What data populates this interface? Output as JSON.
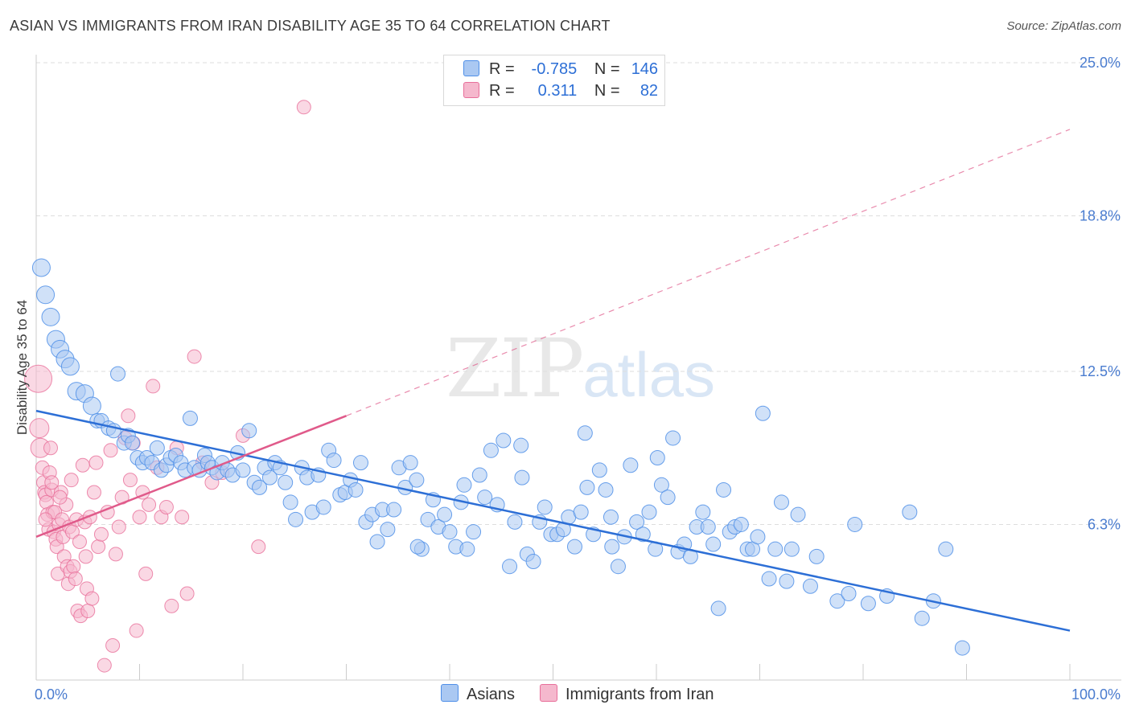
{
  "title": "ASIAN VS IMMIGRANTS FROM IRAN DISABILITY AGE 35 TO 64 CORRELATION CHART",
  "source": "Source: ZipAtlas.com",
  "watermark": {
    "zip": "ZIP",
    "atlas": "atlas"
  },
  "legend": {
    "rows": [
      {
        "r_label": "R =",
        "r_value": "-0.785",
        "n_label": "N =",
        "n_value": "146"
      },
      {
        "r_label": "R =",
        "r_value": "0.311",
        "n_label": "N =",
        "n_value": "82"
      }
    ]
  },
  "bottom_legend": [
    "Asians",
    "Immigrants from Iran"
  ],
  "colors": {
    "blue": "#4f8fe8",
    "blue_fill": "#aac8f2",
    "blue_line": "#2d6fd6",
    "pink": "#e86f9a",
    "pink_fill": "#f5b8cd",
    "pink_line": "#e05a8a",
    "grid": "#dedede",
    "tick_text": "#4a7ccf"
  },
  "chart_data": {
    "type": "scatter",
    "title": "ASIAN VS IMMIGRANTS FROM IRAN DISABILITY AGE 35 TO 64 CORRELATION CHART",
    "ylabel": "Disability Age 35 to 64",
    "xlabel": "",
    "xlim": [
      0,
      100
    ],
    "ylim": [
      0,
      25.0
    ],
    "x_tick_labels": [
      "0.0%",
      "100.0%"
    ],
    "y_ticks": [
      6.3,
      12.5,
      18.8,
      25.0
    ],
    "y_tick_labels": [
      "6.3%",
      "12.5%",
      "18.8%",
      "25.0%"
    ],
    "grid": true,
    "legend_position": "top-center",
    "series": [
      {
        "name": "Asians",
        "color": "#4f8fe8",
        "trend": {
          "x": [
            0,
            100
          ],
          "y": [
            10.9,
            2.0
          ],
          "style": "solid"
        },
        "points": [
          [
            0.5,
            16.7
          ],
          [
            0.9,
            15.6
          ],
          [
            1.4,
            14.7
          ],
          [
            1.9,
            13.8
          ],
          [
            2.3,
            13.4
          ],
          [
            2.8,
            13.0
          ],
          [
            3.3,
            12.7
          ],
          [
            3.9,
            11.7
          ],
          [
            4.7,
            11.6
          ],
          [
            5.4,
            11.1
          ],
          [
            5.9,
            10.5
          ],
          [
            6.3,
            10.5
          ],
          [
            7.0,
            10.2
          ],
          [
            7.5,
            10.1
          ],
          [
            7.9,
            12.4
          ],
          [
            8.5,
            9.6
          ],
          [
            8.9,
            9.9
          ],
          [
            9.3,
            9.6
          ],
          [
            9.8,
            9.0
          ],
          [
            10.3,
            8.8
          ],
          [
            10.7,
            9.0
          ],
          [
            11.2,
            8.8
          ],
          [
            11.7,
            9.4
          ],
          [
            12.1,
            8.5
          ],
          [
            12.6,
            8.7
          ],
          [
            13.0,
            9.0
          ],
          [
            13.5,
            9.1
          ],
          [
            14.0,
            8.8
          ],
          [
            14.4,
            8.5
          ],
          [
            14.9,
            10.6
          ],
          [
            15.3,
            8.6
          ],
          [
            15.8,
            8.5
          ],
          [
            16.3,
            9.1
          ],
          [
            16.6,
            8.8
          ],
          [
            17.0,
            8.6
          ],
          [
            17.5,
            8.4
          ],
          [
            18.0,
            8.8
          ],
          [
            18.5,
            8.5
          ],
          [
            19.0,
            8.3
          ],
          [
            19.5,
            9.2
          ],
          [
            20.0,
            8.5
          ],
          [
            20.6,
            10.1
          ],
          [
            21.1,
            8.0
          ],
          [
            21.6,
            7.8
          ],
          [
            22.1,
            8.6
          ],
          [
            22.6,
            8.2
          ],
          [
            23.1,
            8.8
          ],
          [
            23.6,
            8.6
          ],
          [
            24.1,
            8.0
          ],
          [
            24.6,
            7.2
          ],
          [
            25.1,
            6.5
          ],
          [
            25.7,
            8.6
          ],
          [
            26.2,
            8.2
          ],
          [
            26.7,
            6.8
          ],
          [
            27.3,
            8.3
          ],
          [
            27.8,
            7.0
          ],
          [
            28.3,
            9.3
          ],
          [
            28.8,
            8.9
          ],
          [
            29.4,
            7.5
          ],
          [
            29.9,
            7.6
          ],
          [
            30.4,
            8.1
          ],
          [
            30.9,
            7.7
          ],
          [
            31.4,
            8.8
          ],
          [
            31.9,
            6.4
          ],
          [
            32.5,
            6.7
          ],
          [
            33.0,
            5.6
          ],
          [
            33.5,
            6.9
          ],
          [
            34.0,
            6.1
          ],
          [
            34.6,
            6.9
          ],
          [
            35.1,
            8.6
          ],
          [
            35.7,
            7.8
          ],
          [
            36.2,
            8.8
          ],
          [
            36.8,
            8.1
          ],
          [
            37.3,
            5.3
          ],
          [
            37.9,
            6.5
          ],
          [
            38.4,
            7.3
          ],
          [
            38.9,
            6.2
          ],
          [
            39.5,
            6.7
          ],
          [
            40.0,
            6.0
          ],
          [
            40.6,
            5.4
          ],
          [
            41.1,
            7.2
          ],
          [
            41.7,
            5.3
          ],
          [
            42.3,
            6.0
          ],
          [
            42.9,
            8.3
          ],
          [
            43.4,
            7.4
          ],
          [
            44.0,
            9.3
          ],
          [
            44.6,
            7.1
          ],
          [
            45.2,
            9.7
          ],
          [
            45.8,
            4.6
          ],
          [
            46.3,
            6.4
          ],
          [
            46.9,
            9.5
          ],
          [
            47.5,
            5.1
          ],
          [
            48.1,
            4.8
          ],
          [
            48.7,
            6.4
          ],
          [
            49.2,
            7.0
          ],
          [
            49.8,
            5.9
          ],
          [
            50.4,
            5.9
          ],
          [
            51.0,
            6.1
          ],
          [
            51.5,
            6.6
          ],
          [
            52.1,
            5.4
          ],
          [
            52.7,
            6.8
          ],
          [
            53.3,
            7.8
          ],
          [
            53.9,
            5.9
          ],
          [
            54.5,
            8.5
          ],
          [
            55.1,
            7.7
          ],
          [
            55.7,
            5.4
          ],
          [
            56.3,
            4.6
          ],
          [
            56.9,
            5.8
          ],
          [
            57.5,
            8.7
          ],
          [
            58.1,
            6.4
          ],
          [
            58.7,
            5.9
          ],
          [
            59.3,
            6.8
          ],
          [
            59.9,
            5.3
          ],
          [
            60.5,
            7.9
          ],
          [
            61.1,
            7.4
          ],
          [
            61.6,
            9.8
          ],
          [
            62.1,
            5.2
          ],
          [
            62.7,
            5.5
          ],
          [
            63.3,
            5.0
          ],
          [
            63.9,
            6.2
          ],
          [
            64.5,
            6.8
          ],
          [
            65.0,
            6.2
          ],
          [
            65.5,
            5.5
          ],
          [
            66.0,
            2.9
          ],
          [
            66.5,
            7.7
          ],
          [
            67.1,
            6.0
          ],
          [
            67.6,
            6.2
          ],
          [
            68.2,
            6.3
          ],
          [
            68.8,
            5.3
          ],
          [
            69.3,
            5.3
          ],
          [
            69.8,
            5.8
          ],
          [
            70.3,
            10.8
          ],
          [
            70.9,
            4.1
          ],
          [
            71.5,
            5.3
          ],
          [
            72.1,
            7.2
          ],
          [
            72.6,
            4.0
          ],
          [
            73.1,
            5.3
          ],
          [
            73.7,
            6.7
          ],
          [
            75.5,
            5.0
          ],
          [
            74.9,
            3.8
          ],
          [
            77.5,
            3.2
          ],
          [
            78.6,
            3.5
          ],
          [
            80.5,
            3.1
          ],
          [
            79.2,
            6.3
          ],
          [
            82.3,
            3.4
          ],
          [
            84.5,
            6.8
          ],
          [
            85.7,
            2.5
          ],
          [
            86.8,
            3.2
          ],
          [
            88.0,
            5.3
          ],
          [
            89.6,
            1.3
          ],
          [
            53.1,
            10.0
          ],
          [
            60.1,
            9.0
          ],
          [
            47.0,
            8.2
          ],
          [
            41.4,
            7.9
          ],
          [
            36.9,
            5.4
          ],
          [
            55.6,
            6.6
          ]
        ]
      },
      {
        "name": "Immigrants from Iran",
        "color": "#e86f9a",
        "trend": {
          "x": [
            0,
            30
          ],
          "y": [
            5.8,
            10.7
          ],
          "style": "solid",
          "extended_to": [
            100,
            22.3
          ],
          "extended_style": "dashed"
        },
        "points": [
          [
            0.2,
            12.2
          ],
          [
            0.3,
            10.2
          ],
          [
            0.4,
            9.4
          ],
          [
            0.6,
            8.6
          ],
          [
            0.7,
            8.0
          ],
          [
            0.8,
            7.6
          ],
          [
            0.9,
            7.5
          ],
          [
            1.0,
            7.2
          ],
          [
            1.1,
            6.7
          ],
          [
            1.2,
            6.1
          ],
          [
            1.3,
            8.4
          ],
          [
            1.4,
            9.4
          ],
          [
            1.5,
            7.7
          ],
          [
            1.6,
            6.8
          ],
          [
            1.7,
            6.0
          ],
          [
            1.8,
            6.8
          ],
          [
            1.9,
            5.7
          ],
          [
            2.0,
            5.4
          ],
          [
            2.1,
            4.3
          ],
          [
            2.2,
            6.3
          ],
          [
            2.4,
            7.6
          ],
          [
            2.5,
            6.5
          ],
          [
            2.6,
            5.8
          ],
          [
            2.7,
            5.0
          ],
          [
            2.9,
            7.1
          ],
          [
            3.0,
            4.6
          ],
          [
            3.1,
            3.9
          ],
          [
            3.2,
            6.2
          ],
          [
            3.3,
            4.4
          ],
          [
            3.4,
            8.1
          ],
          [
            3.5,
            6.0
          ],
          [
            3.6,
            4.6
          ],
          [
            3.8,
            4.1
          ],
          [
            3.9,
            6.5
          ],
          [
            4.0,
            2.8
          ],
          [
            4.2,
            5.6
          ],
          [
            4.3,
            2.6
          ],
          [
            4.5,
            8.7
          ],
          [
            4.7,
            6.4
          ],
          [
            4.8,
            5.0
          ],
          [
            4.9,
            3.7
          ],
          [
            5.0,
            2.8
          ],
          [
            5.2,
            6.6
          ],
          [
            5.4,
            3.3
          ],
          [
            5.6,
            7.6
          ],
          [
            5.8,
            8.8
          ],
          [
            6.0,
            5.4
          ],
          [
            6.3,
            5.9
          ],
          [
            6.6,
            0.6
          ],
          [
            6.9,
            6.8
          ],
          [
            7.2,
            9.3
          ],
          [
            7.4,
            1.4
          ],
          [
            7.7,
            5.1
          ],
          [
            8.0,
            6.2
          ],
          [
            8.3,
            7.4
          ],
          [
            8.6,
            9.8
          ],
          [
            8.9,
            10.7
          ],
          [
            9.1,
            8.1
          ],
          [
            9.4,
            9.6
          ],
          [
            9.7,
            2.0
          ],
          [
            10.0,
            6.6
          ],
          [
            10.3,
            7.6
          ],
          [
            10.6,
            4.3
          ],
          [
            10.9,
            7.1
          ],
          [
            11.3,
            11.9
          ],
          [
            11.7,
            8.6
          ],
          [
            12.1,
            6.6
          ],
          [
            12.6,
            7.0
          ],
          [
            13.1,
            3.0
          ],
          [
            13.6,
            9.4
          ],
          [
            14.1,
            6.6
          ],
          [
            14.6,
            3.5
          ],
          [
            15.3,
            13.1
          ],
          [
            16.1,
            8.8
          ],
          [
            17.0,
            8.0
          ],
          [
            18.0,
            8.4
          ],
          [
            20.0,
            9.9
          ],
          [
            21.5,
            5.4
          ],
          [
            25.9,
            23.2
          ],
          [
            2.3,
            7.4
          ],
          [
            1.5,
            8.0
          ],
          [
            0.9,
            6.5
          ]
        ]
      }
    ]
  }
}
